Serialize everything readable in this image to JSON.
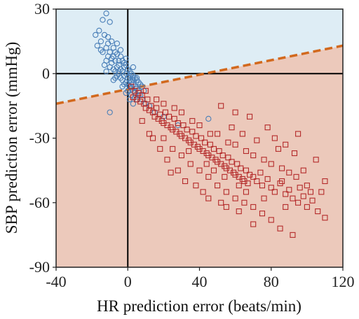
{
  "chart_data": {
    "type": "scatter",
    "xlabel": "HR prediction error (beats/min)",
    "ylabel": "SBP prediction error (mmHg)",
    "xlim": [
      -40,
      120
    ],
    "ylim": [
      -90,
      30
    ],
    "xticks": [
      "-40",
      "0",
      "40",
      "80",
      "120"
    ],
    "xtick_values": [
      -40,
      0,
      40,
      80,
      120
    ],
    "yticks": [
      "30",
      "0",
      "-30",
      "-60",
      "-90"
    ],
    "ytick_values": [
      30,
      0,
      -30,
      -60,
      -90
    ],
    "grid": false,
    "reference_lines": {
      "x": 0,
      "y": 0
    },
    "boundary_line": {
      "style": "dashed",
      "color": "#d2691e",
      "from": [
        -40,
        -14
      ],
      "to": [
        120,
        13
      ]
    },
    "regions": {
      "above_line_color": "#deedf5",
      "below_line_color": "#ecc9bb"
    },
    "series": [
      {
        "marker": "circle",
        "color": "#4a7fb8",
        "points": [
          [
            -12,
            28
          ],
          [
            -14,
            25
          ],
          [
            -10,
            24
          ],
          [
            -16,
            20
          ],
          [
            -13,
            18
          ],
          [
            -11,
            17
          ],
          [
            -15,
            15
          ],
          [
            -9,
            15
          ],
          [
            -17,
            13
          ],
          [
            -12,
            12
          ],
          [
            -8,
            12
          ],
          [
            -10,
            10
          ],
          [
            -14,
            10
          ],
          [
            -6,
            9
          ],
          [
            -11,
            8
          ],
          [
            -8,
            8
          ],
          [
            -4,
            8
          ],
          [
            -12,
            6
          ],
          [
            -7,
            6
          ],
          [
            -3,
            6
          ],
          [
            -9,
            5
          ],
          [
            -5,
            4
          ],
          [
            -1,
            4
          ],
          [
            -10,
            3
          ],
          [
            -6,
            3
          ],
          [
            -2,
            3
          ],
          [
            -8,
            2
          ],
          [
            -4,
            2
          ],
          [
            0,
            2
          ],
          [
            -7,
            1
          ],
          [
            -3,
            1
          ],
          [
            1,
            1
          ],
          [
            -5,
            0
          ],
          [
            -1,
            0
          ],
          [
            2,
            0
          ],
          [
            -6,
            -1
          ],
          [
            -2,
            -1
          ],
          [
            3,
            -1
          ],
          [
            -4,
            -2
          ],
          [
            0,
            -2
          ],
          [
            4,
            -2
          ],
          [
            -3,
            -3
          ],
          [
            1,
            -3
          ],
          [
            5,
            -3
          ],
          [
            -1,
            -4
          ],
          [
            2,
            -4
          ],
          [
            6,
            -4
          ],
          [
            0,
            -5
          ],
          [
            3,
            -5
          ],
          [
            7,
            -5
          ],
          [
            1,
            -6
          ],
          [
            4,
            -6
          ],
          [
            2,
            -7
          ],
          [
            5,
            -7
          ],
          [
            8,
            -6
          ],
          [
            3,
            -8
          ],
          [
            6,
            -8
          ],
          [
            4,
            -9
          ],
          [
            -6,
            14
          ],
          [
            -15,
            11
          ],
          [
            -9,
            7
          ],
          [
            -13,
            4
          ],
          [
            -5,
            1
          ],
          [
            -2,
            5
          ],
          [
            -7,
            -2
          ],
          [
            9,
            -8
          ],
          [
            7,
            -10
          ],
          [
            -10,
            -18
          ],
          [
            5,
            -12
          ],
          [
            2,
            -10
          ],
          [
            -18,
            18
          ],
          [
            -4,
            11
          ],
          [
            -1,
            7
          ],
          [
            1,
            -1
          ],
          [
            3,
            -3
          ],
          [
            0,
            -8
          ],
          [
            -2,
            -5
          ],
          [
            6,
            -10
          ],
          [
            8,
            -12
          ],
          [
            4,
            -11
          ],
          [
            10,
            -14
          ],
          [
            3,
            3
          ],
          [
            5,
            -2
          ],
          [
            -8,
            -3
          ],
          [
            -12,
            1
          ],
          [
            12,
            -15
          ],
          [
            15,
            -18
          ],
          [
            20,
            -20
          ],
          [
            28,
            -24
          ],
          [
            45,
            -21
          ],
          [
            -11,
            14
          ],
          [
            -7,
            10
          ],
          [
            -5,
            6
          ],
          [
            -3,
            -6
          ],
          [
            -1,
            -9
          ],
          [
            1,
            -12
          ],
          [
            3,
            -14
          ]
        ]
      },
      {
        "marker": "square",
        "color": "#b42a2a",
        "points": [
          [
            2,
            -6
          ],
          [
            4,
            -8
          ],
          [
            6,
            -9
          ],
          [
            8,
            -10
          ],
          [
            3,
            -11
          ],
          [
            5,
            -12
          ],
          [
            7,
            -13
          ],
          [
            9,
            -14
          ],
          [
            11,
            -12
          ],
          [
            13,
            -15
          ],
          [
            10,
            -16
          ],
          [
            12,
            -17
          ],
          [
            14,
            -18
          ],
          [
            16,
            -16
          ],
          [
            18,
            -19
          ],
          [
            15,
            -20
          ],
          [
            17,
            -21
          ],
          [
            19,
            -22
          ],
          [
            21,
            -18
          ],
          [
            23,
            -20
          ],
          [
            20,
            -23
          ],
          [
            22,
            -24
          ],
          [
            24,
            -25
          ],
          [
            26,
            -21
          ],
          [
            28,
            -23
          ],
          [
            25,
            -26
          ],
          [
            27,
            -27
          ],
          [
            29,
            -28
          ],
          [
            31,
            -24
          ],
          [
            33,
            -26
          ],
          [
            30,
            -29
          ],
          [
            32,
            -30
          ],
          [
            34,
            -31
          ],
          [
            36,
            -27
          ],
          [
            38,
            -29
          ],
          [
            35,
            -32
          ],
          [
            37,
            -33
          ],
          [
            39,
            -34
          ],
          [
            41,
            -30
          ],
          [
            43,
            -32
          ],
          [
            40,
            -35
          ],
          [
            42,
            -36
          ],
          [
            44,
            -37
          ],
          [
            46,
            -33
          ],
          [
            48,
            -35
          ],
          [
            45,
            -38
          ],
          [
            47,
            -39
          ],
          [
            49,
            -40
          ],
          [
            51,
            -36
          ],
          [
            53,
            -38
          ],
          [
            50,
            -41
          ],
          [
            52,
            -42
          ],
          [
            54,
            -43
          ],
          [
            56,
            -39
          ],
          [
            58,
            -41
          ],
          [
            55,
            -44
          ],
          [
            57,
            -45
          ],
          [
            59,
            -46
          ],
          [
            61,
            -42
          ],
          [
            63,
            -44
          ],
          [
            60,
            -47
          ],
          [
            62,
            -48
          ],
          [
            64,
            -49
          ],
          [
            66,
            -45
          ],
          [
            68,
            -47
          ],
          [
            65,
            -50
          ],
          [
            67,
            -51
          ],
          [
            70,
            -48
          ],
          [
            72,
            -50
          ],
          [
            75,
            -52
          ],
          [
            78,
            -49
          ],
          [
            80,
            -53
          ],
          [
            82,
            -55
          ],
          [
            85,
            -51
          ],
          [
            88,
            -56
          ],
          [
            90,
            -54
          ],
          [
            92,
            -58
          ],
          [
            95,
            -60
          ],
          [
            98,
            -57
          ],
          [
            100,
            -62
          ],
          [
            103,
            -59
          ],
          [
            106,
            -64
          ],
          [
            110,
            -67
          ],
          [
            108,
            -55
          ],
          [
            94,
            -48
          ],
          [
            86,
            -44
          ],
          [
            76,
            -40
          ],
          [
            66,
            -36
          ],
          [
            56,
            -32
          ],
          [
            46,
            -28
          ],
          [
            36,
            -22
          ],
          [
            26,
            -16
          ],
          [
            16,
            -12
          ],
          [
            10,
            -8
          ],
          [
            20,
            -14
          ],
          [
            30,
            -18
          ],
          [
            40,
            -24
          ],
          [
            50,
            -28
          ],
          [
            60,
            -33
          ],
          [
            70,
            -38
          ],
          [
            80,
            -42
          ],
          [
            90,
            -46
          ],
          [
            100,
            -52
          ],
          [
            58,
            -25
          ],
          [
            64,
            -28
          ],
          [
            72,
            -31
          ],
          [
            84,
            -35
          ],
          [
            93,
            -37
          ],
          [
            82,
            -30
          ],
          [
            88,
            -33
          ],
          [
            20,
            -30
          ],
          [
            25,
            -35
          ],
          [
            30,
            -38
          ],
          [
            35,
            -42
          ],
          [
            40,
            -45
          ],
          [
            45,
            -48
          ],
          [
            50,
            -52
          ],
          [
            55,
            -55
          ],
          [
            60,
            -58
          ],
          [
            65,
            -60
          ],
          [
            70,
            -62
          ],
          [
            75,
            -65
          ],
          [
            80,
            -68
          ],
          [
            70,
            -70
          ],
          [
            92,
            -75
          ],
          [
            85,
            -72
          ],
          [
            55,
            -62
          ],
          [
            45,
            -58
          ],
          [
            38,
            -52
          ],
          [
            28,
            -45
          ],
          [
            22,
            -40
          ],
          [
            18,
            -35
          ],
          [
            12,
            -28
          ],
          [
            8,
            -22
          ],
          [
            14,
            -30
          ],
          [
            24,
            -46
          ],
          [
            32,
            -50
          ],
          [
            42,
            -55
          ],
          [
            52,
            -60
          ],
          [
            62,
            -64
          ],
          [
            52,
            -15
          ],
          [
            60,
            -18
          ],
          [
            68,
            -20
          ],
          [
            78,
            -25
          ],
          [
            95,
            -28
          ],
          [
            105,
            -40
          ],
          [
            110,
            -50
          ],
          [
            98,
            -45
          ],
          [
            76,
            -58
          ],
          [
            88,
            -62
          ],
          [
            66,
            -55
          ],
          [
            74,
            -46
          ],
          [
            86,
            -50
          ],
          [
            96,
            -53
          ],
          [
            102,
            -55
          ],
          [
            44,
            -42
          ],
          [
            34,
            -36
          ],
          [
            62,
            -52
          ],
          [
            54,
            -48
          ],
          [
            48,
            -45
          ]
        ]
      }
    ]
  }
}
